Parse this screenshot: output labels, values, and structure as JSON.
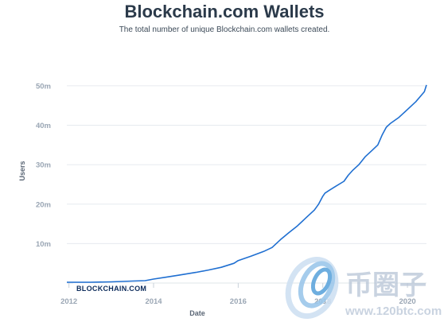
{
  "chart_data": {
    "type": "line",
    "title": "Blockchain.com Wallets",
    "subtitle": "The total number of unique Blockchain.com wallets created.",
    "xlabel": "Date",
    "ylabel": "Users",
    "xlim": [
      2011.95,
      2020.45
    ],
    "ylim": [
      0,
      52
    ],
    "x_ticks": [
      2012,
      2014,
      2016,
      2018,
      2020
    ],
    "y_ticks": [
      10,
      20,
      30,
      40,
      50
    ],
    "y_tick_labels": [
      "10m",
      "20m",
      "30m",
      "40m",
      "50m"
    ],
    "grid": true,
    "line_color": "#1f6fd1",
    "series": [
      {
        "x": [
          2011.95,
          2012.5,
          2013.0,
          2013.5,
          2013.8,
          2013.9,
          2014.0,
          2014.3,
          2014.6,
          2015.0,
          2015.3,
          2015.6,
          2015.9,
          2016.0,
          2016.3,
          2016.6,
          2016.8,
          2017.0,
          2017.2,
          2017.4,
          2017.6,
          2017.8,
          2017.9,
          2018.0,
          2018.05,
          2018.15,
          2018.3,
          2018.5,
          2018.6,
          2018.7,
          2018.85,
          2019.0,
          2019.15,
          2019.3,
          2019.4,
          2019.5,
          2019.6,
          2019.8,
          2020.0,
          2020.2,
          2020.4,
          2020.45
        ],
        "values": [
          0.2,
          0.2,
          0.3,
          0.5,
          0.6,
          0.8,
          1.0,
          1.5,
          2.0,
          2.7,
          3.3,
          4.0,
          5.0,
          5.7,
          6.8,
          8.0,
          9.0,
          11.0,
          12.8,
          14.5,
          16.5,
          18.5,
          20.0,
          22.0,
          22.8,
          23.5,
          24.5,
          25.8,
          27.3,
          28.5,
          30.0,
          32.0,
          33.5,
          35.0,
          37.5,
          39.5,
          40.5,
          42.0,
          44.0,
          46.0,
          48.5,
          50.2
        ]
      }
    ],
    "brand_label": "BLOCKCHAIN.COM",
    "watermark": {
      "text": "币圈子",
      "url": "www.120btc.com"
    }
  }
}
